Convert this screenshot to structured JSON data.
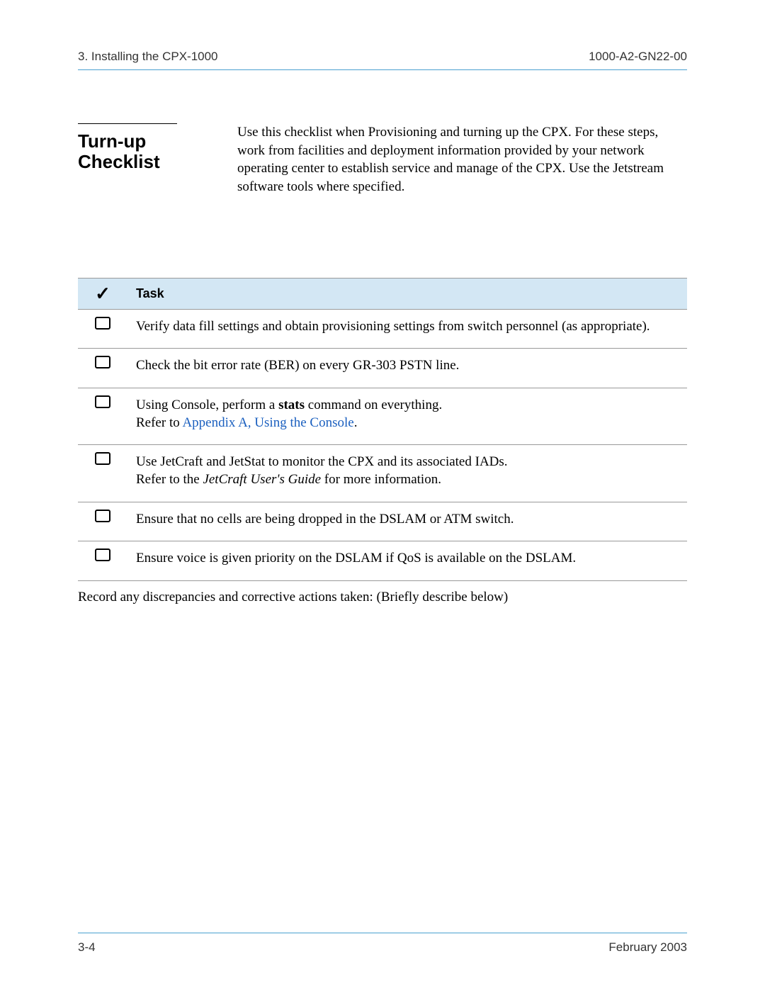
{
  "header": {
    "left": "3. Installing the CPX-1000",
    "right": "1000-A2-GN22-00"
  },
  "section": {
    "title_line1": "Turn-up",
    "title_line2": "Checklist",
    "intro": "Use this checklist when Provisioning and turning up the CPX. For these steps, work from facilities and deployment information provided by your network operating center to establish service and manage of the CPX. Use the Jetstream software tools where specified."
  },
  "table": {
    "header_check": "✓",
    "header_task": "Task",
    "rows": [
      {
        "task_html": "Verify data fill settings and obtain provisioning settings from switch personnel (as appropriate)."
      },
      {
        "task_html": "Check the bit error rate (BER) on every GR-303 PSTN line."
      },
      {
        "task_html": "Using Console, perform a <span class=\"bold\">stats</span> command on everything.<br>Refer to <span class=\"link\">Appendix A, Using the Console</span>."
      },
      {
        "task_html": "Use JetCraft and JetStat to monitor the CPX and its associated IADs.<br>Refer to the <span class=\"italic\">JetCraft User's Guide</span> for more information."
      },
      {
        "task_html": "Ensure that no cells are being dropped in the DSLAM or ATM switch."
      },
      {
        "task_html": "Ensure voice is given priority on the DSLAM if QoS is available on the DSLAM."
      }
    ],
    "footer_note": "Record any discrepancies and corrective actions taken: (Briefly describe below)"
  },
  "footer": {
    "left": "3-4",
    "right": "February 2003"
  },
  "colors": {
    "rule": "#4aa0d0",
    "header_bg": "#d3e7f4",
    "link": "#1a5fbf"
  }
}
